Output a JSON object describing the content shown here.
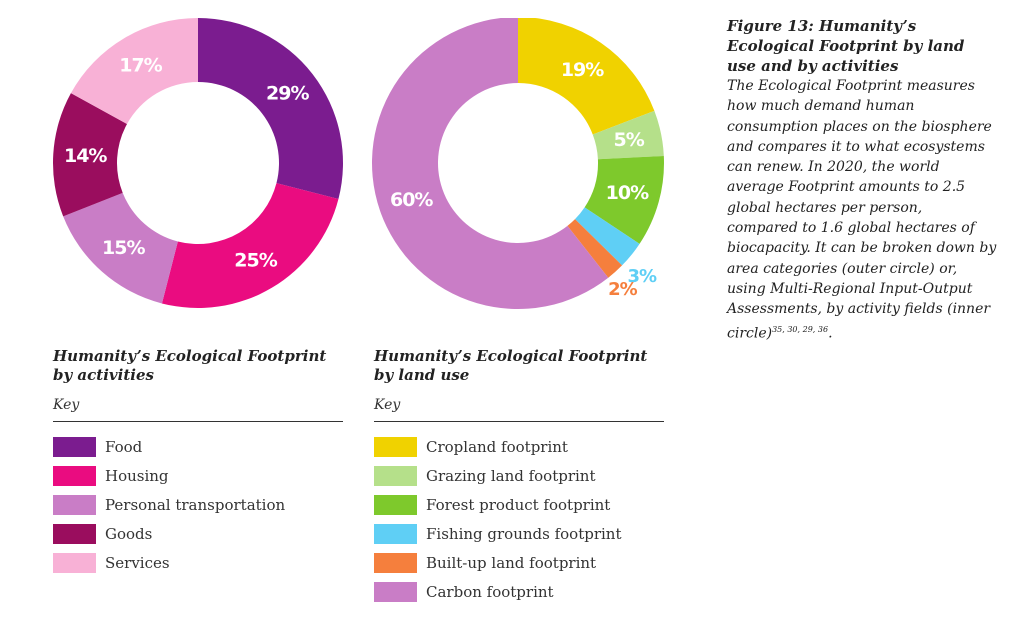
{
  "chart_data": [
    {
      "type": "pie",
      "title": "Humanity’s Ecological Footprint by activities",
      "legend_title": "Key",
      "slices": [
        {
          "name": "Food",
          "value": 29,
          "label": "29%",
          "color": "#7b1c8f"
        },
        {
          "name": "Housing",
          "value": 25,
          "label": "25%",
          "color": "#ea0c80"
        },
        {
          "name": "Personal transportation",
          "value": 15,
          "label": "15%",
          "color": "#c97dc6"
        },
        {
          "name": "Goods",
          "value": 14,
          "label": "14%",
          "color": "#9a0d5e"
        },
        {
          "name": "Services",
          "value": 17,
          "label": "17%",
          "color": "#f8b1d6"
        }
      ]
    },
    {
      "type": "pie",
      "title": "Humanity’s Ecological Footprint by land use",
      "legend_title": "Key",
      "slices": [
        {
          "name": "Cropland footprint",
          "value": 19,
          "label": "19%",
          "color": "#f0d200"
        },
        {
          "name": "Grazing land footprint",
          "value": 5,
          "label": "5%",
          "color": "#b5e08a"
        },
        {
          "name": "Forest product footprint",
          "value": 10,
          "label": "10%",
          "color": "#7ec92c"
        },
        {
          "name": "Fishing grounds footprint",
          "value": 3,
          "label": "3%",
          "color": "#5fcff5"
        },
        {
          "name": "Built-up land footprint",
          "value": 2,
          "label": "2%",
          "color": "#f57f3d"
        },
        {
          "name": "Carbon footprint",
          "value": 60,
          "label": "60%",
          "color": "#c97dc6"
        }
      ]
    }
  ],
  "caption": {
    "title": "Figure 13: Humanity’s Ecological Footprint by land use and by activities",
    "body": "The Ecological Footprint measures how much demand human consumption places on the biosphere and compares it to what ecosystems can renew. In 2020, the world average Footprint amounts to 2.5 global hectares per person, compared to 1.6 global hectares of biocapacity. It can be broken down by area categories (outer circle) or, using Multi-Regional Input-Output Assessments, by activity fields (inner circle)",
    "refs": "35, 30, 29, 36",
    "end": "."
  }
}
